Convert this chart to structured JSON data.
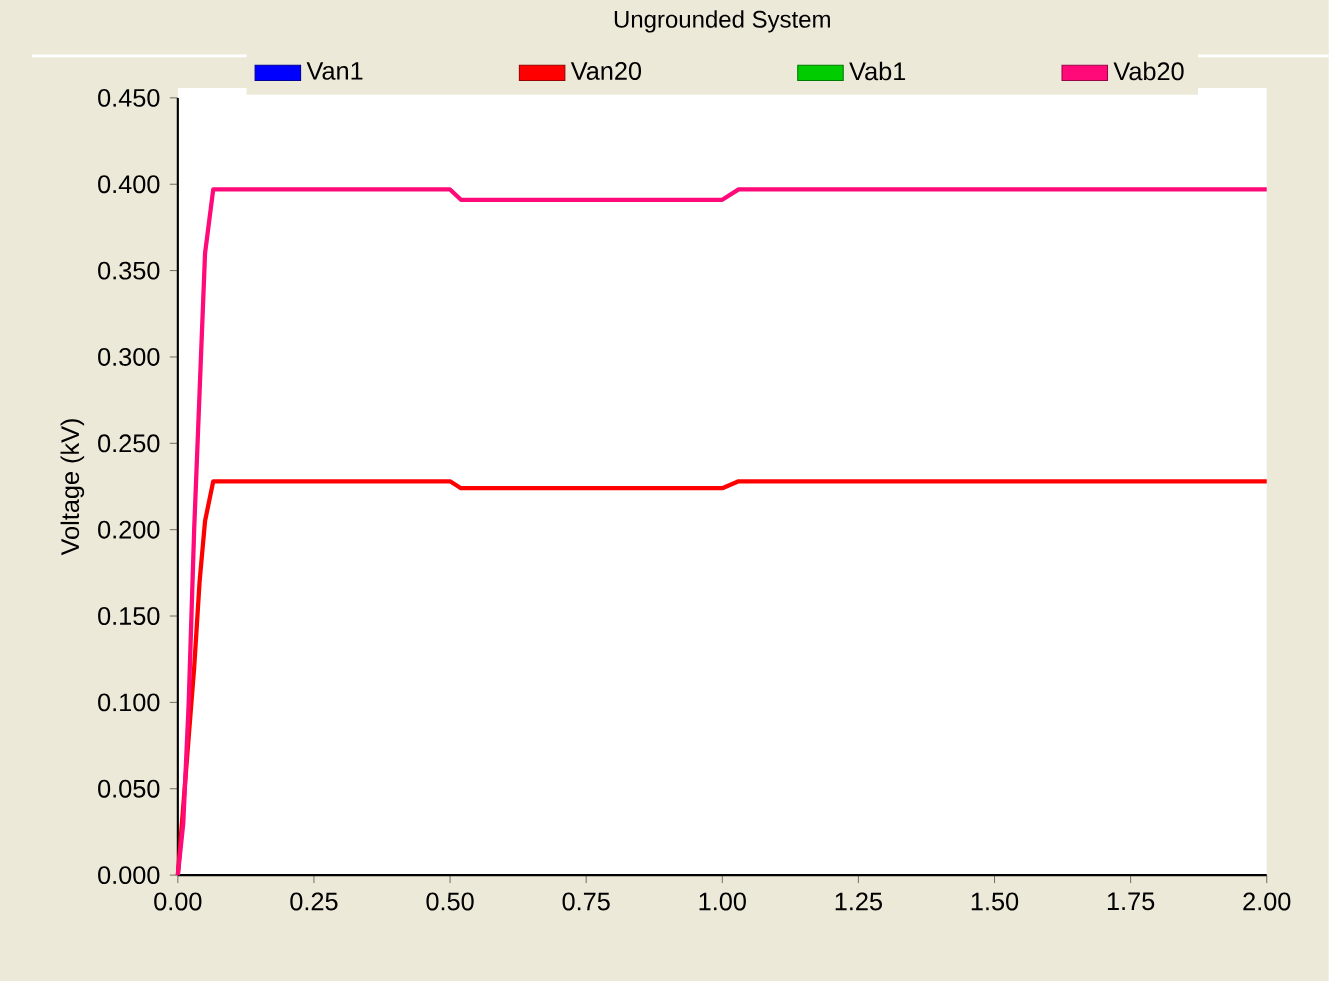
{
  "chart_data": {
    "type": "line",
    "title": "Ungrounded System",
    "ylabel": "Voltage (kV)",
    "xlim": [
      0,
      2
    ],
    "ylim": [
      0,
      0.45
    ],
    "xticks": [
      {
        "value": 0,
        "label": "0.00"
      },
      {
        "value": 0.25,
        "label": "0.25"
      },
      {
        "value": 0.5,
        "label": "0.50"
      },
      {
        "value": 0.75,
        "label": "0.75"
      },
      {
        "value": 1,
        "label": "1.00"
      },
      {
        "value": 1.25,
        "label": "1.25"
      },
      {
        "value": 1.5,
        "label": "1.50"
      },
      {
        "value": 1.75,
        "label": "1.75"
      },
      {
        "value": 2,
        "label": "2.00"
      }
    ],
    "yticks": [
      {
        "value": 0,
        "label": "0.000"
      },
      {
        "value": 0.05,
        "label": "0.050"
      },
      {
        "value": 0.1,
        "label": "0.100"
      },
      {
        "value": 0.15,
        "label": "0.150"
      },
      {
        "value": 0.2,
        "label": "0.200"
      },
      {
        "value": 0.25,
        "label": "0.250"
      },
      {
        "value": 0.3,
        "label": "0.300"
      },
      {
        "value": 0.35,
        "label": "0.350"
      },
      {
        "value": 0.4,
        "label": "0.400"
      },
      {
        "value": 0.45,
        "label": "0.450"
      }
    ],
    "x": [
      0,
      0.01,
      0.02,
      0.03,
      0.04,
      0.05,
      0.065,
      0.5,
      0.52,
      1.0,
      1.03,
      2.0
    ],
    "series": [
      {
        "name": "Van1",
        "color": "#0000ff",
        "values": [
          null,
          null,
          null,
          null,
          null,
          null,
          null,
          null,
          null,
          null,
          null,
          null
        ]
      },
      {
        "name": "Van20",
        "color": "#ff0000",
        "values": [
          0,
          0.04,
          0.08,
          0.12,
          0.17,
          0.205,
          0.228,
          0.228,
          0.224,
          0.224,
          0.228,
          0.228
        ]
      },
      {
        "name": "Vab1",
        "color": "#00cc00",
        "values": [
          null,
          null,
          null,
          null,
          null,
          null,
          null,
          null,
          null,
          null,
          null,
          null
        ]
      },
      {
        "name": "Vab20",
        "color": "#ff0a78",
        "values": [
          0,
          0.03,
          0.1,
          0.2,
          0.28,
          0.36,
          0.397,
          0.397,
          0.391,
          0.391,
          0.397,
          0.397
        ]
      }
    ],
    "legend": "top",
    "grid": false,
    "marker": "none",
    "line_style": "solid"
  }
}
